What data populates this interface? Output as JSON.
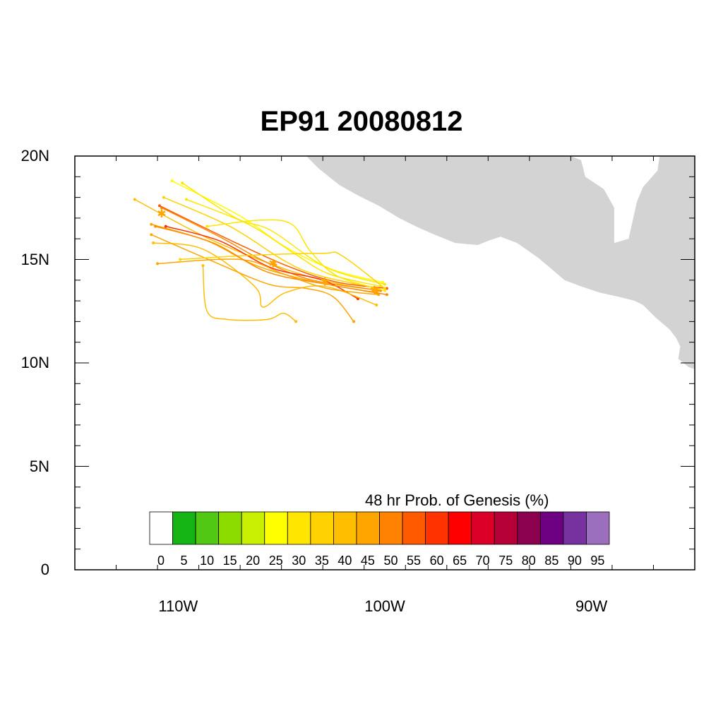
{
  "title": "EP91 20080812",
  "map": {
    "lat_range": [
      0,
      20
    ],
    "lon_range": [
      -115,
      -85
    ],
    "y_ticks": [
      {
        "value": 20,
        "label": "20N"
      },
      {
        "value": 15,
        "label": "15N"
      },
      {
        "value": 10,
        "label": "10N"
      },
      {
        "value": 5,
        "label": "5N"
      },
      {
        "value": 0,
        "label": "0"
      }
    ],
    "x_ticks": [
      {
        "value": -110,
        "label": "110W"
      },
      {
        "value": -100,
        "label": "100W"
      },
      {
        "value": -90,
        "label": "90W"
      }
    ],
    "land_color": "#d3d3d3",
    "land_outline": [
      [
        -103.8,
        20.0
      ],
      [
        -103.2,
        19.4
      ],
      [
        -102.2,
        18.6
      ],
      [
        -101.3,
        18.1
      ],
      [
        -100.3,
        17.6
      ],
      [
        -99.3,
        17.0
      ],
      [
        -98.5,
        16.6
      ],
      [
        -97.6,
        16.2
      ],
      [
        -96.6,
        15.8
      ],
      [
        -95.5,
        15.7
      ],
      [
        -95.0,
        15.9
      ],
      [
        -94.4,
        16.1
      ],
      [
        -93.6,
        15.8
      ],
      [
        -92.6,
        15.1
      ],
      [
        -92.0,
        14.6
      ],
      [
        -91.3,
        14.0
      ],
      [
        -90.5,
        13.7
      ],
      [
        -89.6,
        13.4
      ],
      [
        -88.7,
        13.2
      ],
      [
        -87.9,
        13.0
      ],
      [
        -87.5,
        12.8
      ],
      [
        -86.9,
        12.2
      ],
      [
        -86.2,
        11.6
      ],
      [
        -85.9,
        11.2
      ],
      [
        -85.7,
        10.8
      ],
      [
        -85.8,
        10.2
      ],
      [
        -85.3,
        9.8
      ],
      [
        -85.0,
        9.7
      ],
      [
        -85.0,
        20.0
      ],
      [
        -86.7,
        20.0
      ],
      [
        -86.8,
        19.3
      ],
      [
        -87.5,
        18.5
      ],
      [
        -87.8,
        17.8
      ],
      [
        -88.2,
        16.0
      ],
      [
        -88.9,
        15.8
      ],
      [
        -88.9,
        17.5
      ],
      [
        -89.4,
        18.4
      ],
      [
        -90.3,
        19.0
      ],
      [
        -90.5,
        19.8
      ],
      [
        -91.0,
        20.0
      ]
    ],
    "tracks": [
      {
        "color": "#ffff00",
        "points": [
          [
            -100.1,
            13.9
          ],
          [
            -102.5,
            14.5
          ],
          [
            -104.8,
            15.6
          ],
          [
            -107.0,
            17.1
          ],
          [
            -110.3,
            18.8
          ]
        ]
      },
      {
        "color": "#ffe600",
        "points": [
          [
            -100.0,
            13.8
          ],
          [
            -102.8,
            14.6
          ],
          [
            -105.5,
            16.4
          ],
          [
            -107.2,
            17.0
          ],
          [
            -109.8,
            18.7
          ]
        ]
      },
      {
        "color": "#ffe600",
        "points": [
          [
            -100.2,
            13.7
          ],
          [
            -102.7,
            14.3
          ],
          [
            -104.4,
            15.3
          ],
          [
            -106.6,
            16.7
          ],
          [
            -109.6,
            17.9
          ]
        ]
      },
      {
        "color": "#ffd200",
        "points": [
          [
            -100.3,
            13.6
          ],
          [
            -103.1,
            14.2
          ],
          [
            -104.8,
            14.9
          ],
          [
            -107.5,
            16.6
          ],
          [
            -110.7,
            18.0
          ]
        ]
      },
      {
        "color": "#ffbe00",
        "points": [
          [
            -100.3,
            13.5
          ],
          [
            -102.6,
            13.9
          ],
          [
            -105.0,
            14.6
          ],
          [
            -108.5,
            16.0
          ],
          [
            -112.1,
            17.9
          ]
        ]
      },
      {
        "color": "#ffa500",
        "points": [
          [
            -100.4,
            13.4
          ],
          [
            -103.3,
            13.9
          ],
          [
            -106.2,
            14.7
          ],
          [
            -108.6,
            15.9
          ],
          [
            -111.3,
            16.7
          ]
        ]
      },
      {
        "color": "#ff8c00",
        "points": [
          [
            -100.2,
            13.5
          ],
          [
            -103.5,
            14.0
          ],
          [
            -105.8,
            14.9
          ],
          [
            -108.0,
            16.1
          ],
          [
            -110.8,
            17.5
          ]
        ]
      },
      {
        "color": "#ff5a00",
        "points": [
          [
            -99.9,
            13.6
          ],
          [
            -102.3,
            13.9
          ],
          [
            -104.5,
            14.6
          ],
          [
            -107.2,
            15.8
          ],
          [
            -110.9,
            17.6
          ]
        ]
      },
      {
        "color": "#ff3000",
        "points": [
          [
            -101.3,
            13.1
          ],
          [
            -103.0,
            14.0
          ],
          [
            -105.5,
            14.6
          ],
          [
            -108.0,
            15.9
          ],
          [
            -110.6,
            16.6
          ]
        ]
      },
      {
        "color": "#ffbe00",
        "points": [
          [
            -100.4,
            12.8
          ],
          [
            -102.9,
            13.7
          ],
          [
            -104.8,
            13.4
          ],
          [
            -105.9,
            12.7
          ],
          [
            -106.3,
            13.7
          ],
          [
            -108.8,
            15.5
          ],
          [
            -111.2,
            15.8
          ]
        ]
      },
      {
        "color": "#ffa500",
        "points": [
          [
            -101.5,
            12.0
          ],
          [
            -102.5,
            13.2
          ],
          [
            -103.8,
            13.6
          ],
          [
            -105.6,
            13.8
          ],
          [
            -108.3,
            14.9
          ],
          [
            -111.3,
            16.2
          ]
        ]
      },
      {
        "color": "#ffbe00",
        "points": [
          [
            -104.3,
            12.0
          ],
          [
            -104.9,
            12.4
          ],
          [
            -105.7,
            12.1
          ],
          [
            -107.6,
            12.1
          ],
          [
            -108.6,
            12.5
          ],
          [
            -108.8,
            14.7
          ]
        ]
      },
      {
        "color": "#ffd200",
        "points": [
          [
            -100.0,
            13.6
          ],
          [
            -102.1,
            15.2
          ],
          [
            -103.0,
            15.3
          ],
          [
            -106.5,
            15.2
          ],
          [
            -109.9,
            15.0
          ]
        ]
      },
      {
        "color": "#ffe600",
        "points": [
          [
            -100.0,
            13.5
          ],
          [
            -102.3,
            14.2
          ],
          [
            -103.6,
            15.4
          ],
          [
            -104.5,
            16.7
          ],
          [
            -106.0,
            16.9
          ],
          [
            -108.6,
            16.6
          ]
        ]
      },
      {
        "color": "#ffa500",
        "points": [
          [
            -100.3,
            13.3
          ],
          [
            -102.8,
            13.6
          ],
          [
            -104.9,
            14.3
          ],
          [
            -107.0,
            15.0
          ],
          [
            -111.0,
            14.8
          ]
        ]
      },
      {
        "color": "#ff8c00",
        "points": [
          [
            -99.9,
            13.3
          ],
          [
            -102.8,
            13.8
          ],
          [
            -105.7,
            14.4
          ],
          [
            -108.3,
            15.8
          ],
          [
            -111.1,
            16.6
          ]
        ]
      }
    ],
    "genesis_markers": [
      [
        -110.8,
        17.2
      ],
      [
        -105.4,
        14.8
      ],
      [
        -102.9,
        13.9
      ],
      [
        -100.5,
        13.5
      ]
    ]
  },
  "colorbar": {
    "title": "48 hr Prob. of Genesis (%)",
    "bins": [
      {
        "label": "0",
        "color": "#ffffff"
      },
      {
        "label": "5",
        "color": "#14b414"
      },
      {
        "label": "10",
        "color": "#50c814"
      },
      {
        "label": "15",
        "color": "#8cdc00"
      },
      {
        "label": "20",
        "color": "#c8f000"
      },
      {
        "label": "25",
        "color": "#ffff00"
      },
      {
        "label": "30",
        "color": "#ffe600"
      },
      {
        "label": "35",
        "color": "#ffd200"
      },
      {
        "label": "40",
        "color": "#ffbe00"
      },
      {
        "label": "45",
        "color": "#ffa500"
      },
      {
        "label": "50",
        "color": "#ff8200"
      },
      {
        "label": "55",
        "color": "#ff5a00"
      },
      {
        "label": "60",
        "color": "#ff3200"
      },
      {
        "label": "65",
        "color": "#ff0000"
      },
      {
        "label": "70",
        "color": "#dc0028"
      },
      {
        "label": "75",
        "color": "#b40037"
      },
      {
        "label": "80",
        "color": "#8c0050"
      },
      {
        "label": "85",
        "color": "#6e0082"
      },
      {
        "label": "90",
        "color": "#7832a0"
      },
      {
        "label": "95",
        "color": "#9b6ebe"
      }
    ]
  }
}
